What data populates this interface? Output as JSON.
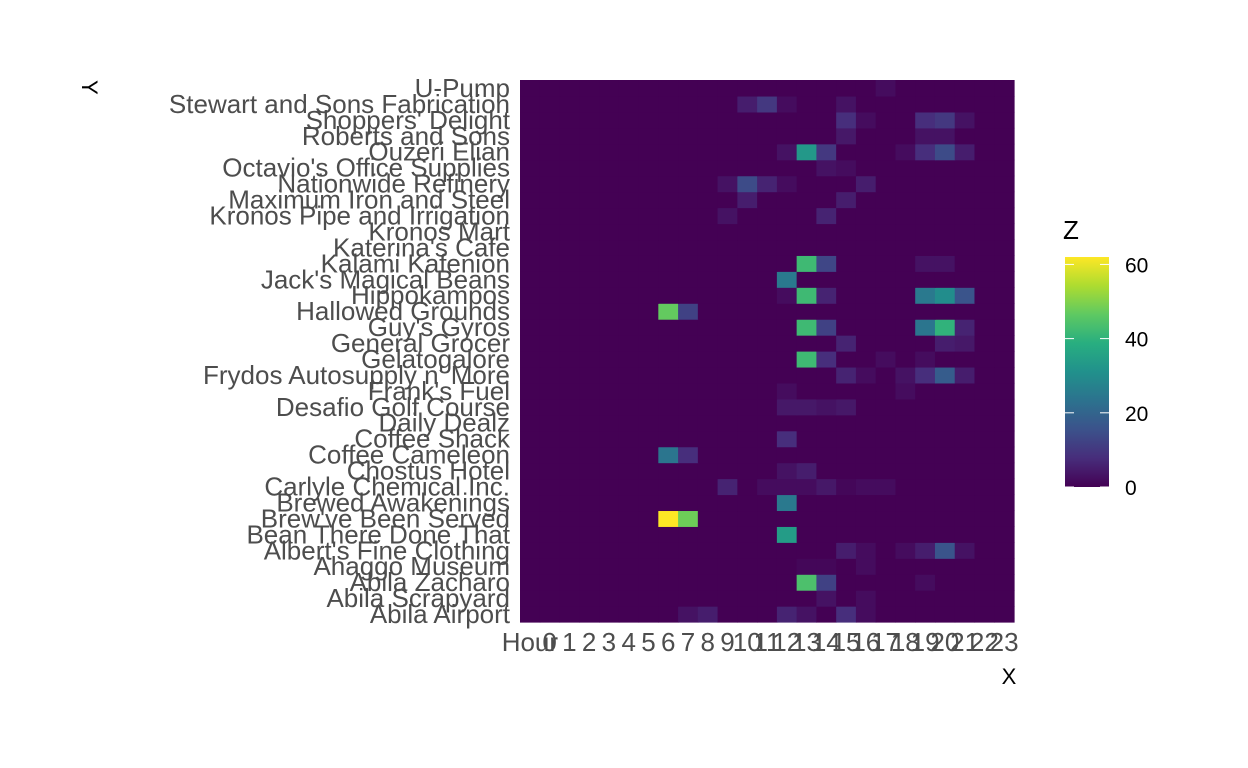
{
  "chart_data": {
    "type": "heatmap",
    "xlabel": "X",
    "ylabel": "Y",
    "legend_title": "Z",
    "legend_ticks": [
      0,
      20,
      40,
      60
    ],
    "zlim": [
      0,
      62
    ],
    "grid": false,
    "legend_position": "right",
    "x": [
      "Hour",
      "0",
      "1",
      "2",
      "3",
      "4",
      "5",
      "6",
      "7",
      "8",
      "9",
      "10",
      "11",
      "12",
      "13",
      "14",
      "15",
      "16",
      "17",
      "18",
      "19",
      "20",
      "21",
      "22",
      "23"
    ],
    "y": [
      "Abila Airport",
      "Abila Scrapyard",
      "Abila Zacharo",
      "Ahaggo Museum",
      "Albert's Fine Clothing",
      "Bean There Done That",
      "Brew've Been Served",
      "Brewed Awakenings",
      "Carlyle Chemical Inc.",
      "Chostus Hotel",
      "Coffee Cameleon",
      "Coffee Shack",
      "Daily Dealz",
      "Desafio Golf Course",
      "Frank's Fuel",
      "Frydos Autosupply n' More",
      "Gelatogalore",
      "General Grocer",
      "Guy's Gyros",
      "Hallowed Grounds",
      "Hippokampos",
      "Jack's Magical Beans",
      "Kalami Kafenion",
      "Katerina's Cafe",
      "Kronos Mart",
      "Kronos Pipe and Irrigation",
      "Maximum Iron and Steel",
      "Nationwide Refinery",
      "Octavio's Office Supplies",
      "Ouzeri Elian",
      "Roberts and Sons",
      "Shoppers' Delight",
      "Stewart and Sons Fabrication",
      "U-Pump"
    ],
    "cells": [
      {
        "y": "Abila Airport",
        "x": "7",
        "z": 3
      },
      {
        "y": "Abila Airport",
        "x": "8",
        "z": 5
      },
      {
        "y": "Abila Airport",
        "x": "12",
        "z": 6
      },
      {
        "y": "Abila Airport",
        "x": "13",
        "z": 3
      },
      {
        "y": "Abila Airport",
        "x": "15",
        "z": 8
      },
      {
        "y": "Abila Airport",
        "x": "16",
        "z": 2
      },
      {
        "y": "Abila Scrapyard",
        "x": "14",
        "z": 3
      },
      {
        "y": "Abila Scrapyard",
        "x": "16",
        "z": 2
      },
      {
        "y": "Abila Zacharo",
        "x": "13",
        "z": 44
      },
      {
        "y": "Abila Zacharo",
        "x": "14",
        "z": 12
      },
      {
        "y": "Abila Zacharo",
        "x": "19",
        "z": 2
      },
      {
        "y": "Ahaggo Museum",
        "x": "13",
        "z": 1
      },
      {
        "y": "Ahaggo Museum",
        "x": "14",
        "z": 1
      },
      {
        "y": "Ahaggo Museum",
        "x": "16",
        "z": 2
      },
      {
        "y": "Albert's Fine Clothing",
        "x": "15",
        "z": 5
      },
      {
        "y": "Albert's Fine Clothing",
        "x": "16",
        "z": 2
      },
      {
        "y": "Albert's Fine Clothing",
        "x": "18",
        "z": 2
      },
      {
        "y": "Albert's Fine Clothing",
        "x": "19",
        "z": 5
      },
      {
        "y": "Albert's Fine Clothing",
        "x": "20",
        "z": 16
      },
      {
        "y": "Albert's Fine Clothing",
        "x": "21",
        "z": 3
      },
      {
        "y": "Bean There Done That",
        "x": "12",
        "z": 34
      },
      {
        "y": "Brew've Been Served",
        "x": "6",
        "z": 62
      },
      {
        "y": "Brew've Been Served",
        "x": "7",
        "z": 48
      },
      {
        "y": "Brewed Awakenings",
        "x": "12",
        "z": 25
      },
      {
        "y": "Carlyle Chemical Inc.",
        "x": "9",
        "z": 6
      },
      {
        "y": "Carlyle Chemical Inc.",
        "x": "11",
        "z": 2
      },
      {
        "y": "Carlyle Chemical Inc.",
        "x": "12",
        "z": 2
      },
      {
        "y": "Carlyle Chemical Inc.",
        "x": "13",
        "z": 2
      },
      {
        "y": "Carlyle Chemical Inc.",
        "x": "14",
        "z": 4
      },
      {
        "y": "Carlyle Chemical Inc.",
        "x": "15",
        "z": 1
      },
      {
        "y": "Carlyle Chemical Inc.",
        "x": "16",
        "z": 2
      },
      {
        "y": "Carlyle Chemical Inc.",
        "x": "17",
        "z": 2
      },
      {
        "y": "Chostus Hotel",
        "x": "12",
        "z": 3
      },
      {
        "y": "Chostus Hotel",
        "x": "13",
        "z": 5
      },
      {
        "y": "Coffee Cameleon",
        "x": "6",
        "z": 24
      },
      {
        "y": "Coffee Cameleon",
        "x": "7",
        "z": 8
      },
      {
        "y": "Coffee Shack",
        "x": "12",
        "z": 8
      },
      {
        "y": "Desafio Golf Course",
        "x": "12",
        "z": 4
      },
      {
        "y": "Desafio Golf Course",
        "x": "13",
        "z": 4
      },
      {
        "y": "Desafio Golf Course",
        "x": "14",
        "z": 3
      },
      {
        "y": "Desafio Golf Course",
        "x": "15",
        "z": 4
      },
      {
        "y": "Frank's Fuel",
        "x": "12",
        "z": 2
      },
      {
        "y": "Frank's Fuel",
        "x": "18",
        "z": 2
      },
      {
        "y": "Frydos Autosupply n' More",
        "x": "15",
        "z": 6
      },
      {
        "y": "Frydos Autosupply n' More",
        "x": "16",
        "z": 2
      },
      {
        "y": "Frydos Autosupply n' More",
        "x": "18",
        "z": 3
      },
      {
        "y": "Frydos Autosupply n' More",
        "x": "19",
        "z": 8
      },
      {
        "y": "Frydos Autosupply n' More",
        "x": "20",
        "z": 18
      },
      {
        "y": "Frydos Autosupply n' More",
        "x": "21",
        "z": 5
      },
      {
        "y": "Gelatogalore",
        "x": "13",
        "z": 42
      },
      {
        "y": "Gelatogalore",
        "x": "14",
        "z": 8
      },
      {
        "y": "Gelatogalore",
        "x": "17",
        "z": 2
      },
      {
        "y": "Gelatogalore",
        "x": "19",
        "z": 2
      },
      {
        "y": "General Grocer",
        "x": "15",
        "z": 6
      },
      {
        "y": "General Grocer",
        "x": "20",
        "z": 5
      },
      {
        "y": "General Grocer",
        "x": "21",
        "z": 4
      },
      {
        "y": "Guy's Gyros",
        "x": "13",
        "z": 42
      },
      {
        "y": "Guy's Gyros",
        "x": "14",
        "z": 12
      },
      {
        "y": "Guy's Gyros",
        "x": "19",
        "z": 24
      },
      {
        "y": "Guy's Gyros",
        "x": "20",
        "z": 40
      },
      {
        "y": "Guy's Gyros",
        "x": "21",
        "z": 6
      },
      {
        "y": "Hallowed Grounds",
        "x": "6",
        "z": 47
      },
      {
        "y": "Hallowed Grounds",
        "x": "7",
        "z": 12
      },
      {
        "y": "Hippokampos",
        "x": "12",
        "z": 2
      },
      {
        "y": "Hippokampos",
        "x": "13",
        "z": 42
      },
      {
        "y": "Hippokampos",
        "x": "14",
        "z": 6
      },
      {
        "y": "Hippokampos",
        "x": "19",
        "z": 25
      },
      {
        "y": "Hippokampos",
        "x": "20",
        "z": 30
      },
      {
        "y": "Hippokampos",
        "x": "21",
        "z": 16
      },
      {
        "y": "Jack's Magical Beans",
        "x": "12",
        "z": 25
      },
      {
        "y": "Kalami Kafenion",
        "x": "13",
        "z": 42
      },
      {
        "y": "Kalami Kafenion",
        "x": "14",
        "z": 13
      },
      {
        "y": "Kalami Kafenion",
        "x": "19",
        "z": 3
      },
      {
        "y": "Kalami Kafenion",
        "x": "20",
        "z": 3
      },
      {
        "y": "Kronos Pipe and Irrigation",
        "x": "9",
        "z": 3
      },
      {
        "y": "Kronos Pipe and Irrigation",
        "x": "14",
        "z": 6
      },
      {
        "y": "Maximum Iron and Steel",
        "x": "10",
        "z": 5
      },
      {
        "y": "Maximum Iron and Steel",
        "x": "15",
        "z": 5
      },
      {
        "y": "Nationwide Refinery",
        "x": "9",
        "z": 3
      },
      {
        "y": "Nationwide Refinery",
        "x": "10",
        "z": 14
      },
      {
        "y": "Nationwide Refinery",
        "x": "11",
        "z": 6
      },
      {
        "y": "Nationwide Refinery",
        "x": "12",
        "z": 2
      },
      {
        "y": "Nationwide Refinery",
        "x": "16",
        "z": 5
      },
      {
        "y": "Octavio's Office Supplies",
        "x": "14",
        "z": 3
      },
      {
        "y": "Octavio's Office Supplies",
        "x": "15",
        "z": 2
      },
      {
        "y": "Ouzeri Elian",
        "x": "12",
        "z": 3
      },
      {
        "y": "Ouzeri Elian",
        "x": "13",
        "z": 33
      },
      {
        "y": "Ouzeri Elian",
        "x": "14",
        "z": 10
      },
      {
        "y": "Ouzeri Elian",
        "x": "18",
        "z": 2
      },
      {
        "y": "Ouzeri Elian",
        "x": "19",
        "z": 8
      },
      {
        "y": "Ouzeri Elian",
        "x": "20",
        "z": 14
      },
      {
        "y": "Ouzeri Elian",
        "x": "21",
        "z": 5
      },
      {
        "y": "Roberts and Sons",
        "x": "15",
        "z": 4
      },
      {
        "y": "Roberts and Sons",
        "x": "19",
        "z": 3
      },
      {
        "y": "Roberts and Sons",
        "x": "20",
        "z": 3
      },
      {
        "y": "Shoppers' Delight",
        "x": "15",
        "z": 8
      },
      {
        "y": "Shoppers' Delight",
        "x": "16",
        "z": 2
      },
      {
        "y": "Shoppers' Delight",
        "x": "19",
        "z": 8
      },
      {
        "y": "Shoppers' Delight",
        "x": "20",
        "z": 10
      },
      {
        "y": "Shoppers' Delight",
        "x": "21",
        "z": 3
      },
      {
        "y": "Stewart and Sons Fabrication",
        "x": "10",
        "z": 5
      },
      {
        "y": "Stewart and Sons Fabrication",
        "x": "11",
        "z": 10
      },
      {
        "y": "Stewart and Sons Fabrication",
        "x": "12",
        "z": 2
      },
      {
        "y": "Stewart and Sons Fabrication",
        "x": "15",
        "z": 3
      },
      {
        "y": "U-Pump",
        "x": "17",
        "z": 2
      }
    ]
  }
}
